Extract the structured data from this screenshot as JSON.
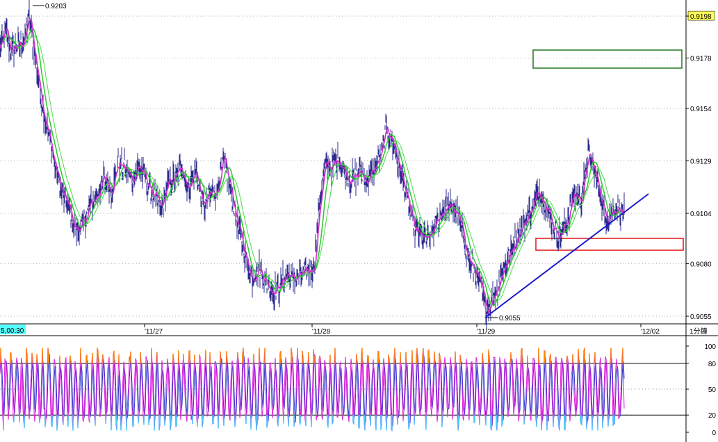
{
  "chart_data": [
    {
      "type": "line",
      "panel": "price",
      "series_name_visible": false,
      "y_ticks": [
        "0.9198",
        "0.9178",
        "0.9154",
        "0.9129",
        "0.9104",
        "0.9080",
        "0.9055"
      ],
      "ylim": [
        0.9045,
        0.9205
      ],
      "x_ticks": [
        "'11/27",
        "'11/28",
        "'11/29",
        "'12/02"
      ],
      "x_left_label": "5,00:30",
      "interval_label": "1分鐘",
      "annotations": {
        "high": "0.9203",
        "low": "0.9055"
      },
      "grid": true,
      "colors": {
        "price": "#2b2b8c",
        "ma_fast": "#cc33cc",
        "ma_mid": "#33cc33",
        "ma_slow": "#44dd44",
        "trendline": "#1a1acc",
        "upper_box": "#227722",
        "lower_box": "#e01010",
        "grid": "#b0b0b0",
        "label_bg": "#55ffff"
      },
      "anchors": [
        {
          "i": 0,
          "v": 0.9183
        },
        {
          "i": 3,
          "v": 0.9185
        },
        {
          "i": 8,
          "v": 0.9192
        },
        {
          "i": 12,
          "v": 0.9186
        },
        {
          "i": 16,
          "v": 0.918
        },
        {
          "i": 22,
          "v": 0.9184
        },
        {
          "i": 28,
          "v": 0.9183
        },
        {
          "i": 36,
          "v": 0.9188
        },
        {
          "i": 42,
          "v": 0.9198
        },
        {
          "i": 48,
          "v": 0.9184
        },
        {
          "i": 56,
          "v": 0.9166
        },
        {
          "i": 64,
          "v": 0.915
        },
        {
          "i": 72,
          "v": 0.9138
        },
        {
          "i": 80,
          "v": 0.9125
        },
        {
          "i": 90,
          "v": 0.9113
        },
        {
          "i": 100,
          "v": 0.9106
        },
        {
          "i": 108,
          "v": 0.9096
        },
        {
          "i": 118,
          "v": 0.9098
        },
        {
          "i": 130,
          "v": 0.9108
        },
        {
          "i": 140,
          "v": 0.9113
        },
        {
          "i": 150,
          "v": 0.9121
        },
        {
          "i": 160,
          "v": 0.9115
        },
        {
          "i": 170,
          "v": 0.9128
        },
        {
          "i": 180,
          "v": 0.9125
        },
        {
          "i": 190,
          "v": 0.912
        },
        {
          "i": 200,
          "v": 0.9127
        },
        {
          "i": 212,
          "v": 0.9118
        },
        {
          "i": 222,
          "v": 0.9112
        },
        {
          "i": 232,
          "v": 0.9106
        },
        {
          "i": 240,
          "v": 0.9117
        },
        {
          "i": 252,
          "v": 0.9121
        },
        {
          "i": 262,
          "v": 0.9126
        },
        {
          "i": 270,
          "v": 0.9116
        },
        {
          "i": 282,
          "v": 0.9124
        },
        {
          "i": 292,
          "v": 0.9107
        },
        {
          "i": 302,
          "v": 0.9113
        },
        {
          "i": 312,
          "v": 0.9115
        },
        {
          "i": 322,
          "v": 0.9129
        },
        {
          "i": 332,
          "v": 0.9115
        },
        {
          "i": 342,
          "v": 0.9098
        },
        {
          "i": 352,
          "v": 0.9085
        },
        {
          "i": 362,
          "v": 0.9073
        },
        {
          "i": 372,
          "v": 0.9078
        },
        {
          "i": 382,
          "v": 0.9072
        },
        {
          "i": 392,
          "v": 0.9067
        },
        {
          "i": 402,
          "v": 0.9069
        },
        {
          "i": 412,
          "v": 0.9075
        },
        {
          "i": 422,
          "v": 0.9073
        },
        {
          "i": 432,
          "v": 0.9074
        },
        {
          "i": 442,
          "v": 0.9076
        },
        {
          "i": 452,
          "v": 0.9079
        },
        {
          "i": 460,
          "v": 0.911
        },
        {
          "i": 468,
          "v": 0.9127
        },
        {
          "i": 478,
          "v": 0.9126
        },
        {
          "i": 488,
          "v": 0.913
        },
        {
          "i": 498,
          "v": 0.9122
        },
        {
          "i": 508,
          "v": 0.912
        },
        {
          "i": 518,
          "v": 0.9124
        },
        {
          "i": 528,
          "v": 0.9119
        },
        {
          "i": 538,
          "v": 0.9125
        },
        {
          "i": 548,
          "v": 0.9132
        },
        {
          "i": 556,
          "v": 0.9145
        },
        {
          "i": 566,
          "v": 0.9137
        },
        {
          "i": 576,
          "v": 0.9124
        },
        {
          "i": 586,
          "v": 0.911
        },
        {
          "i": 596,
          "v": 0.9096
        },
        {
          "i": 606,
          "v": 0.9093
        },
        {
          "i": 616,
          "v": 0.9091
        },
        {
          "i": 626,
          "v": 0.9098
        },
        {
          "i": 636,
          "v": 0.9105
        },
        {
          "i": 646,
          "v": 0.9107
        },
        {
          "i": 656,
          "v": 0.9105
        },
        {
          "i": 666,
          "v": 0.9094
        },
        {
          "i": 676,
          "v": 0.908
        },
        {
          "i": 684,
          "v": 0.9077
        },
        {
          "i": 692,
          "v": 0.9068
        },
        {
          "i": 700,
          "v": 0.9058
        },
        {
          "i": 708,
          "v": 0.9063
        },
        {
          "i": 716,
          "v": 0.907
        },
        {
          "i": 726,
          "v": 0.9079
        },
        {
          "i": 736,
          "v": 0.9086
        },
        {
          "i": 746,
          "v": 0.9095
        },
        {
          "i": 756,
          "v": 0.91
        },
        {
          "i": 766,
          "v": 0.9108
        },
        {
          "i": 776,
          "v": 0.9115
        },
        {
          "i": 786,
          "v": 0.9108
        },
        {
          "i": 796,
          "v": 0.9098
        },
        {
          "i": 806,
          "v": 0.9093
        },
        {
          "i": 816,
          "v": 0.9101
        },
        {
          "i": 826,
          "v": 0.9114
        },
        {
          "i": 836,
          "v": 0.911
        },
        {
          "i": 846,
          "v": 0.9132
        },
        {
          "i": 854,
          "v": 0.9126
        },
        {
          "i": 862,
          "v": 0.9115
        },
        {
          "i": 870,
          "v": 0.9103
        },
        {
          "i": 878,
          "v": 0.9104
        },
        {
          "i": 888,
          "v": 0.9107
        },
        {
          "i": 898,
          "v": 0.9104
        }
      ]
    },
    {
      "type": "line",
      "panel": "oscillator",
      "y_ticks": [
        "100",
        "80",
        "50",
        "20",
        "0"
      ],
      "ylim": [
        0,
        100
      ],
      "reference_lines": [
        80,
        20
      ],
      "colors": {
        "k_line": "#dd22dd",
        "d_line": "#3333cc",
        "overbought": "#ff8800",
        "oversold": "#44ccff"
      }
    }
  ]
}
